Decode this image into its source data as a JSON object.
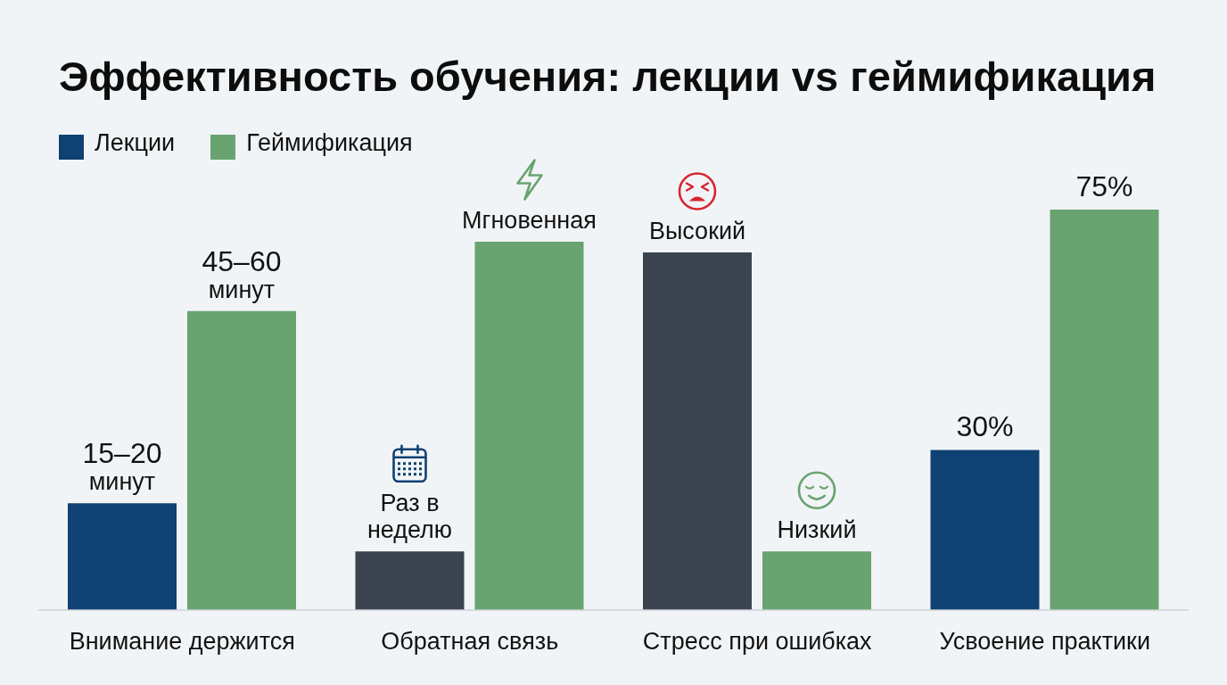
{
  "chart_data": {
    "type": "bar",
    "title": "Эффективность обучения: лекции vs геймификация",
    "categories": [
      "Внимание держится",
      "Обратная связь",
      "Стресс при ошибках",
      "Усвоение практики"
    ],
    "tick_labels": "x",
    "legend": "top left",
    "series": [
      {
        "name": "Лекции",
        "color": "#0f4172",
        "colors": [
          "#0f4172",
          "#3a434e",
          "#3a434e",
          "#0f4172"
        ],
        "values": [
          20,
          11,
          67,
          30
        ],
        "value_labels": [
          "15–20 минут",
          "Раз в неделю",
          "Высокий",
          "30%"
        ]
      },
      {
        "name": "Геймификация",
        "color": "#68a370",
        "values": [
          56,
          69,
          11,
          75
        ],
        "value_labels": [
          "45–60 минут",
          "Мгновенная",
          "Низкий",
          "75%"
        ]
      }
    ]
  }
}
